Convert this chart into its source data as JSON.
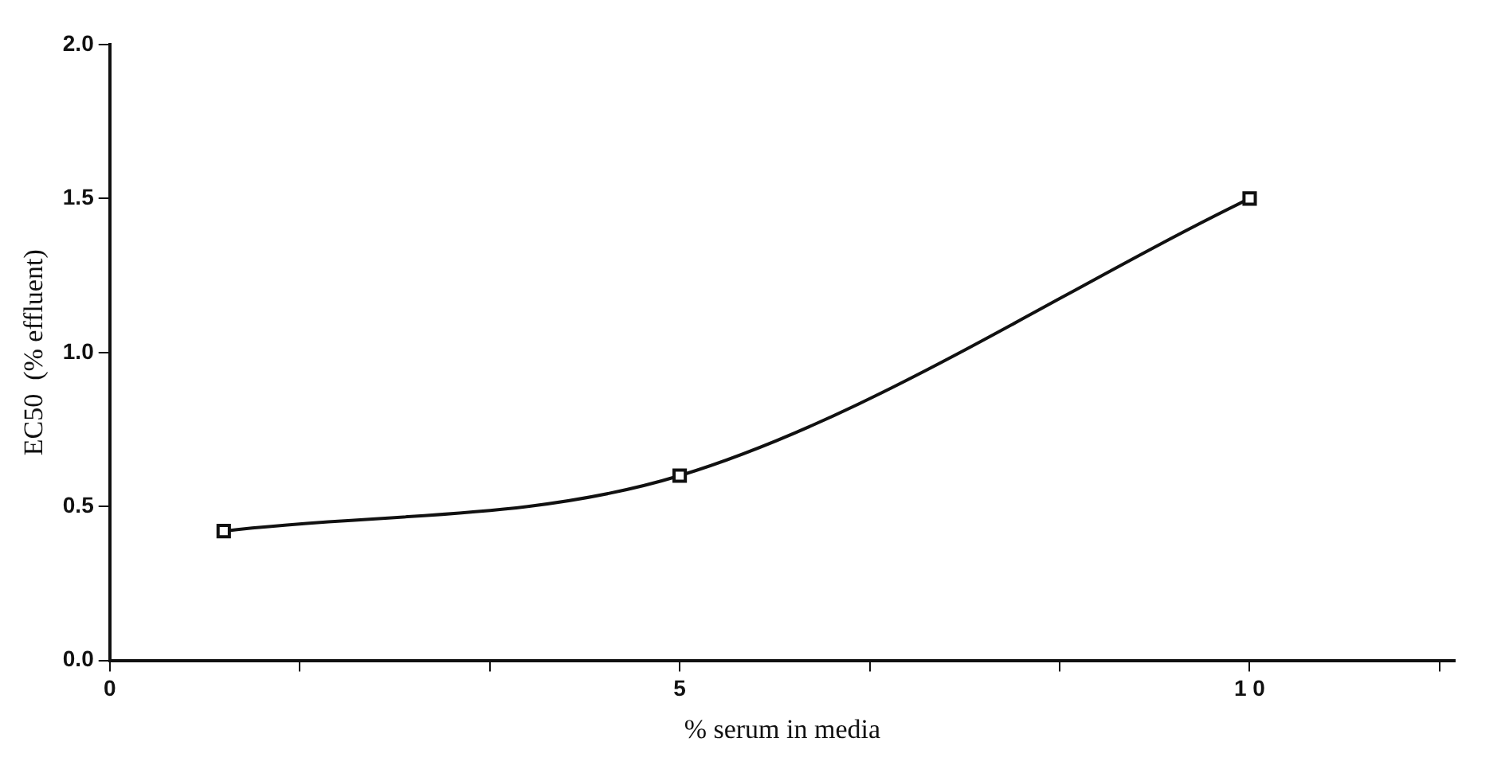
{
  "chart_data": {
    "type": "line",
    "xlabel": "% serum in media",
    "ylabel": "EC50  (% effluent)",
    "x": [
      1,
      5,
      10
    ],
    "series": [
      {
        "color": "#111111",
        "values": [
          0.42,
          0.6,
          1.5
        ]
      }
    ],
    "xlim": [
      0,
      11.8
    ],
    "xticks": [
      0,
      {
        "value": 1.667,
        "label": null
      },
      {
        "value": 3.333,
        "label": null
      },
      5,
      {
        "value": 6.667,
        "label": null
      },
      {
        "value": 8.333,
        "label": null
      },
      {
        "value": 10,
        "label": "1 0"
      },
      {
        "value": 11.667,
        "label": null
      }
    ],
    "ylim": [
      0,
      2
    ],
    "yticks": [
      {
        "value": 0,
        "label": "0.0"
      },
      {
        "value": 0.5,
        "label": "0.5"
      },
      {
        "value": 1,
        "label": "1.0"
      },
      {
        "value": 1.5,
        "label": "1.5"
      },
      {
        "value": 2,
        "label": "2.0"
      }
    ],
    "marker": "square",
    "line_style": "solid",
    "grid": false,
    "legend": false
  }
}
